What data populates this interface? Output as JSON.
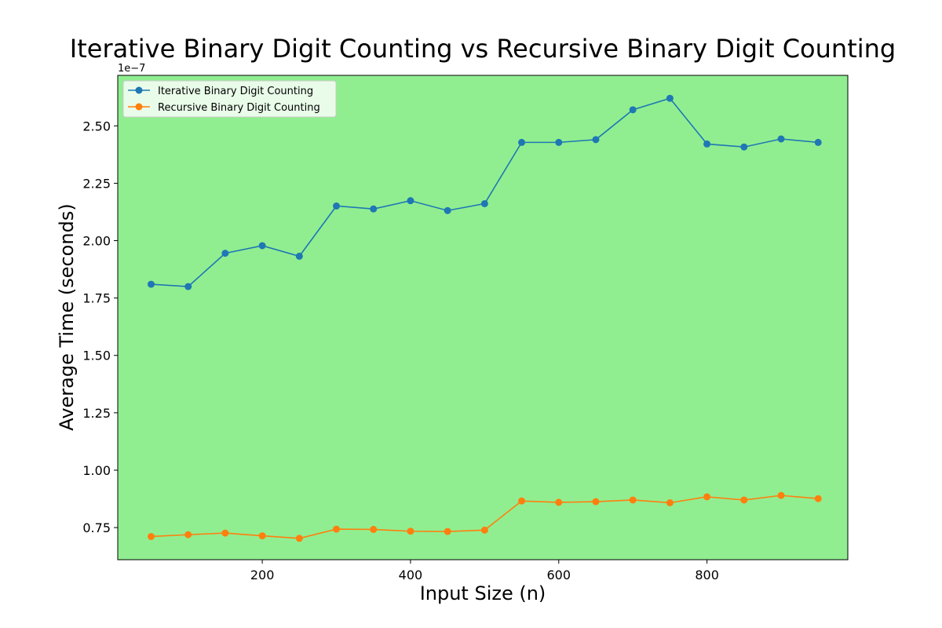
{
  "chart_data": {
    "type": "line",
    "title": "Iterative Binary Digit Counting vs Recursive Binary Digit Counting",
    "xlabel": "Input Size (n)",
    "ylabel": "Average Time (seconds)",
    "y_offset_label": "1e−7",
    "y_scale_factor": 1e-07,
    "xlim": [
      5,
      990
    ],
    "ylim": [
      0.61,
      2.72
    ],
    "x_ticks": [
      200,
      400,
      600,
      800
    ],
    "y_ticks": [
      0.75,
      1.0,
      1.25,
      1.5,
      1.75,
      2.0,
      2.25,
      2.5
    ],
    "plot_background": "#90ee90",
    "grid": false,
    "legend_position": "upper-left",
    "x": [
      50,
      100,
      150,
      200,
      250,
      300,
      350,
      400,
      450,
      500,
      550,
      600,
      650,
      700,
      750,
      800,
      850,
      900,
      950
    ],
    "series": [
      {
        "name": "Iterative Binary Digit Counting",
        "color": "#1f77b4",
        "values": [
          1.81,
          1.8,
          1.945,
          1.978,
          1.932,
          2.151,
          2.138,
          2.174,
          2.131,
          2.161,
          2.428,
          2.428,
          2.44,
          2.57,
          2.62,
          2.421,
          2.408,
          2.443,
          2.428
        ]
      },
      {
        "name": "Recursive Binary Digit Counting",
        "color": "#ff7f0e",
        "values": [
          0.711,
          0.719,
          0.726,
          0.714,
          0.703,
          0.743,
          0.742,
          0.734,
          0.733,
          0.739,
          0.866,
          0.86,
          0.863,
          0.87,
          0.858,
          0.884,
          0.87,
          0.89,
          0.876
        ]
      }
    ]
  }
}
